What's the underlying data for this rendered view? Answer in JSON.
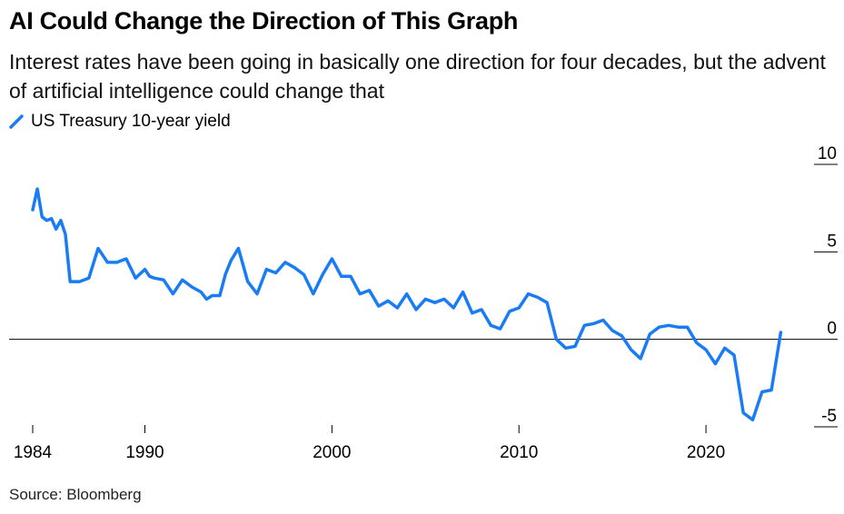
{
  "title": "AI Could Change the Direction of This Graph",
  "subtitle": "Interest rates have been going in basically one direction for four decades, but the advent of artificial intelligence could change that",
  "source": "Source: Bloomberg",
  "colors": {
    "series": "#1a7cf5",
    "zero_line": "#000000",
    "tick": "#000000"
  },
  "chart_data": {
    "type": "line",
    "title": "AI Could Change the Direction of This Graph",
    "xlabel": "",
    "ylabel": "",
    "xlim": [
      1984,
      2025
    ],
    "ylim": [
      -5,
      10
    ],
    "y_ticks": [
      10,
      5,
      0,
      -5
    ],
    "y_tick_labels": [
      "10",
      "5",
      "0",
      "-5"
    ],
    "x_ticks": [
      1984,
      1990,
      2000,
      2010,
      2020
    ],
    "x_tick_labels": [
      "1984",
      "1990",
      "2000",
      "2010",
      "2020"
    ],
    "legend": "top-left",
    "series": [
      {
        "name": "US Treasury 10-year yield",
        "x": [
          1984.0,
          1984.25,
          1984.5,
          1984.75,
          1985.0,
          1985.25,
          1985.5,
          1985.75,
          1986.0,
          1986.5,
          1987.0,
          1987.5,
          1988.0,
          1988.5,
          1989.0,
          1989.5,
          1990.0,
          1990.25,
          1990.5,
          1991.0,
          1991.5,
          1992.0,
          1992.5,
          1993.0,
          1993.3,
          1993.6,
          1994.0,
          1994.3,
          1994.6,
          1995.0,
          1995.5,
          1996.0,
          1996.5,
          1997.0,
          1997.5,
          1998.0,
          1998.5,
          1999.0,
          1999.5,
          2000.0,
          2000.5,
          2001.0,
          2001.5,
          2002.0,
          2002.5,
          2003.0,
          2003.5,
          2004.0,
          2004.5,
          2005.0,
          2005.5,
          2006.0,
          2006.5,
          2007.0,
          2007.5,
          2008.0,
          2008.5,
          2009.0,
          2009.5,
          2010.0,
          2010.5,
          2011.0,
          2011.5,
          2012.0,
          2012.5,
          2013.0,
          2013.5,
          2014.0,
          2014.5,
          2015.0,
          2015.5,
          2016.0,
          2016.5,
          2017.0,
          2017.5,
          2018.0,
          2018.5,
          2019.0,
          2019.5,
          2020.0,
          2020.5,
          2021.0,
          2021.5,
          2022.0,
          2022.5,
          2023.0,
          2023.5,
          2024.0
        ],
        "values": [
          7.4,
          8.6,
          7.0,
          6.8,
          6.9,
          6.3,
          6.8,
          6.0,
          3.3,
          3.3,
          3.5,
          5.2,
          4.4,
          4.4,
          4.6,
          3.5,
          4.0,
          3.6,
          3.5,
          3.4,
          2.6,
          3.4,
          3.0,
          2.7,
          2.3,
          2.5,
          2.5,
          3.7,
          4.5,
          5.2,
          3.3,
          2.6,
          4.0,
          3.8,
          4.4,
          4.1,
          3.7,
          2.6,
          3.7,
          4.6,
          3.6,
          3.6,
          2.6,
          2.8,
          1.9,
          2.2,
          1.8,
          2.6,
          1.7,
          2.3,
          2.1,
          2.3,
          1.8,
          2.7,
          1.5,
          1.7,
          0.8,
          0.6,
          1.6,
          1.8,
          2.6,
          2.4,
          2.1,
          0.0,
          -0.5,
          -0.4,
          0.8,
          0.9,
          1.1,
          0.5,
          0.2,
          -0.6,
          -1.1,
          0.3,
          0.7,
          0.8,
          0.7,
          0.7,
          -0.2,
          -0.6,
          -1.4,
          -0.5,
          -0.9,
          -4.2,
          -4.6,
          -3.0,
          -2.9,
          0.4
        ]
      }
    ]
  }
}
